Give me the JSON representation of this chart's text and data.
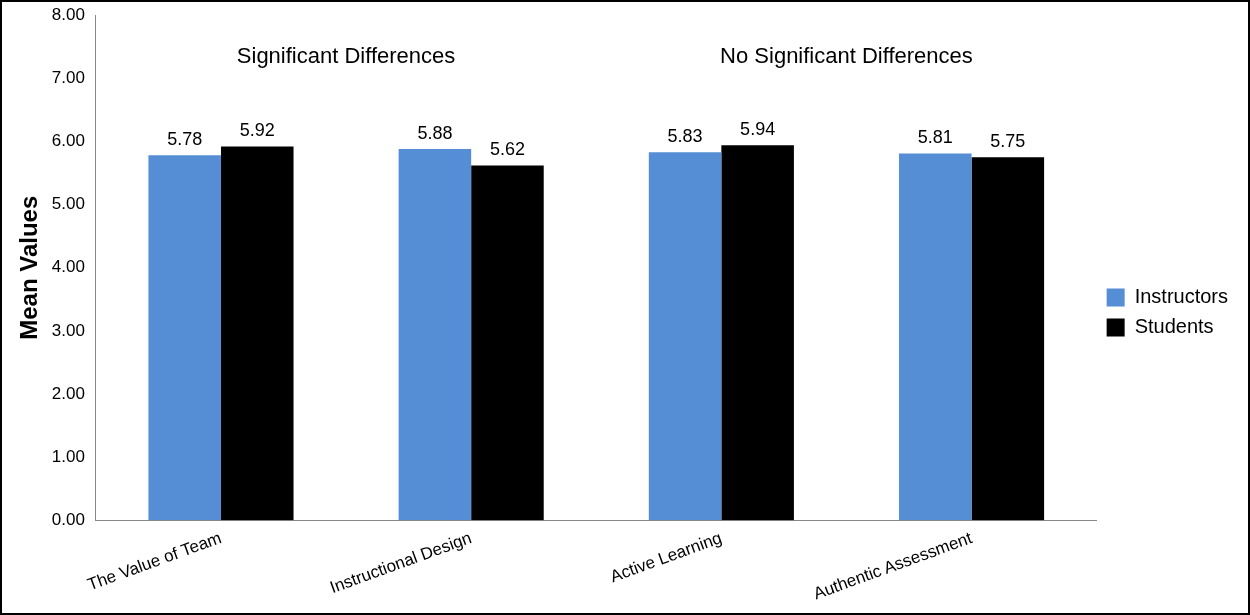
{
  "chart_data": {
    "type": "bar",
    "ylabel": "Mean Values",
    "categories": [
      "The Value of Team",
      "Instructional Design",
      "Active Learning",
      "Authentic Assessment"
    ],
    "series": [
      {
        "name": "Instructors",
        "color": "#558ed5",
        "values": [
          5.78,
          5.88,
          5.83,
          5.81
        ]
      },
      {
        "name": "Students",
        "color": "#000000",
        "values": [
          5.92,
          5.62,
          5.94,
          5.75
        ]
      }
    ],
    "ylim": [
      0,
      8
    ],
    "yticks": [
      {
        "value": 0,
        "label": "0.00"
      },
      {
        "value": 1,
        "label": "1.00"
      },
      {
        "value": 2,
        "label": "2.00"
      },
      {
        "value": 3,
        "label": "3.00"
      },
      {
        "value": 4,
        "label": "4.00"
      },
      {
        "value": 5,
        "label": "5.00"
      },
      {
        "value": 6,
        "label": "6.00"
      },
      {
        "value": 7,
        "label": "7.00"
      },
      {
        "value": 8,
        "label": "8.00"
      }
    ],
    "annotations": [
      "Significant Differences",
      "No Significant Differences"
    ],
    "data_labels": true,
    "grid": false,
    "legend": "right"
  }
}
